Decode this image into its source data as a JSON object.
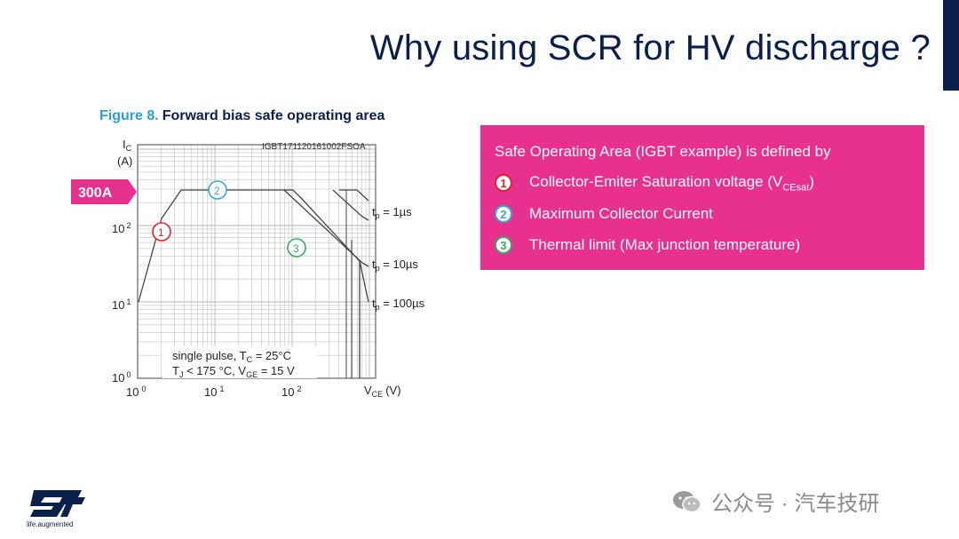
{
  "slide": {
    "title": "Why using SCR for HV discharge ?",
    "accent_color": "#0b1f4b"
  },
  "figure": {
    "number": "Figure 8.",
    "caption": "Forward bias safe operating area",
    "ref_code": "IGBT171120161002FSOA",
    "callout": "300A",
    "callout_color": "#e8318f",
    "y_label_main": "I",
    "y_label_sub": "C",
    "y_label_unit": "(A)",
    "x_label_main": "V",
    "x_label_sub": "CE",
    "x_label_unit": "(V)",
    "y_ticks": [
      {
        "base": "10",
        "exp": "0"
      },
      {
        "base": "10",
        "exp": "1"
      },
      {
        "base": "10",
        "exp": "2"
      }
    ],
    "x_ticks": [
      {
        "base": "10",
        "exp": "0"
      },
      {
        "base": "10",
        "exp": "1"
      },
      {
        "base": "10",
        "exp": "2"
      }
    ],
    "curve_labels": [
      {
        "pre": "t",
        "sub": "p",
        "post": " = 1µs"
      },
      {
        "pre": "t",
        "sub": "p",
        "post": " = 10µs"
      },
      {
        "pre": "t",
        "sub": "p",
        "post": " = 100µs"
      }
    ],
    "conditions": {
      "line1_pre": "single pulse, T",
      "line1_sub": "C",
      "line1_post": " = 25°C",
      "line2_a": "T",
      "line2_a_sub": "J",
      "line2_b": " < 175 °C, V",
      "line2_b_sub": "GE",
      "line2_c": " = 15 V"
    },
    "markers": [
      "1",
      "2",
      "3"
    ]
  },
  "info_box": {
    "heading": "Safe Operating Area (IGBT example) is defined by",
    "items": [
      {
        "num": "1",
        "text": "Collector-Emiter Saturation voltage (V",
        "sub": "CEsat",
        "tail": ")",
        "color": "#e3202a"
      },
      {
        "num": "2",
        "text": "Maximum Collector Current",
        "sub": "",
        "tail": "",
        "color": "#39a7d8"
      },
      {
        "num": "3",
        "text": "Thermal limit (Max junction temperature)",
        "sub": "",
        "tail": "",
        "color": "#3aaa5e"
      }
    ],
    "background": "#e8318f"
  },
  "watermark": {
    "text": "公众号 · 汽车技研"
  },
  "logo": {
    "tagline": "life.augmented"
  }
}
